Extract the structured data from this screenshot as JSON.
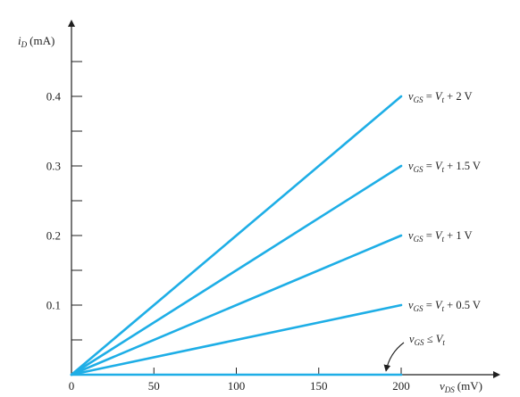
{
  "chart_data": {
    "type": "line",
    "xlabel_var": "v",
    "xlabel_sub": "DS",
    "xlabel_unit": "(mV)",
    "ylabel_var": "i",
    "ylabel_sub": "D",
    "ylabel_unit": "(mA)",
    "xlim": [
      0,
      200
    ],
    "ylim": [
      0,
      0.4
    ],
    "x_ticks": [
      0,
      50,
      100,
      150,
      200
    ],
    "x_tick_labels": [
      "0",
      "50",
      "100",
      "150",
      "200"
    ],
    "y_ticks": [
      0.1,
      0.2,
      0.3,
      0.4
    ],
    "y_tick_labels": [
      "0.1",
      "0.2",
      "0.3",
      "0.4"
    ],
    "y_minor_ticks": [
      0.05,
      0.15,
      0.25,
      0.35,
      0.45
    ],
    "color": "#1eaee6",
    "series": [
      {
        "label_var": "v",
        "label_sub": "GS",
        "label_eq": "=",
        "label_rhs_var": "V",
        "label_rhs_sub": "t",
        "label_rhs": "+ 2 V",
        "x": [
          0,
          200
        ],
        "y": [
          0,
          0.4
        ]
      },
      {
        "label_var": "v",
        "label_sub": "GS",
        "label_eq": "=",
        "label_rhs_var": "V",
        "label_rhs_sub": "t",
        "label_rhs": "+ 1.5 V",
        "x": [
          0,
          200
        ],
        "y": [
          0,
          0.3
        ]
      },
      {
        "label_var": "v",
        "label_sub": "GS",
        "label_eq": "=",
        "label_rhs_var": "V",
        "label_rhs_sub": "t",
        "label_rhs": "+ 1 V",
        "x": [
          0,
          200
        ],
        "y": [
          0,
          0.2
        ]
      },
      {
        "label_var": "v",
        "label_sub": "GS",
        "label_eq": "=",
        "label_rhs_var": "V",
        "label_rhs_sub": "t",
        "label_rhs": "+ 0.5 V",
        "x": [
          0,
          200
        ],
        "y": [
          0,
          0.1
        ]
      },
      {
        "label_var": "v",
        "label_sub": "GS",
        "label_eq": "≤",
        "label_rhs_var": "V",
        "label_rhs_sub": "t",
        "label_rhs": "",
        "x": [
          0,
          200
        ],
        "y": [
          0,
          0
        ]
      }
    ]
  }
}
